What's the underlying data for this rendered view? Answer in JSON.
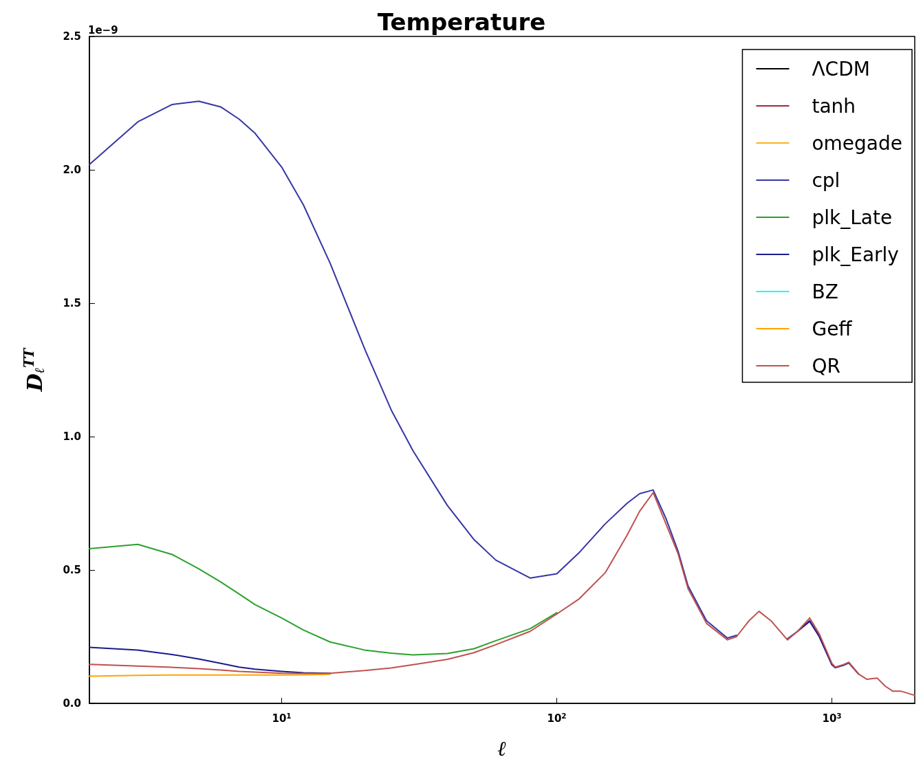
{
  "chart_data": {
    "type": "line",
    "title": "Temperature",
    "xlabel": "ℓ",
    "ylabel": "D$_{ℓ}$$^{TT}$",
    "annotations": [
      "1e−9"
    ],
    "log": "x",
    "grid": false,
    "legend": "top right",
    "xlim": [
      2,
      2000
    ],
    "xticks": [
      {
        "value": 10,
        "label": "10$^{1}$"
      },
      {
        "value": 100,
        "label": "10$^{2}$"
      },
      {
        "value": 1000,
        "label": "10$^{3}$"
      }
    ],
    "ylim": [
      0,
      2.5
    ],
    "yticks": [
      {
        "value": 0,
        "label": "0.0"
      },
      0.5,
      {
        "value": 1,
        "label": "1.0"
      },
      1.5,
      {
        "value": 2,
        "label": "2.0"
      },
      2.5
    ],
    "x": [
      2,
      3,
      4,
      5,
      6,
      7,
      8,
      10,
      12,
      15,
      20,
      25,
      30,
      40,
      50,
      60,
      80,
      100,
      120,
      150,
      180,
      200,
      224,
      250,
      276,
      300,
      350,
      417,
      450,
      500,
      543,
      600,
      689,
      750,
      830,
      900,
      1000,
      1028,
      1100,
      1152,
      1250,
      1342,
      1460,
      1560,
      1662,
      1780,
      2000
    ],
    "series": [
      {
        "name": "ΛCDM",
        "color": "#000000",
        "values": [
          null,
          null,
          null,
          null,
          null,
          null,
          null,
          null,
          null,
          null,
          null,
          null,
          null,
          null,
          null,
          null,
          null,
          null,
          null,
          null,
          null,
          null,
          null,
          null,
          null,
          null,
          null,
          null,
          null,
          null,
          null,
          null,
          null,
          null,
          null,
          null,
          null,
          null,
          null,
          null,
          null,
          null,
          null,
          null,
          null,
          null,
          null
        ]
      },
      {
        "name": "tanh",
        "color": "#a0283c",
        "values": [
          null,
          null,
          null,
          null,
          null,
          null,
          null,
          null,
          null,
          null,
          null,
          null,
          null,
          null,
          null,
          null,
          null,
          null,
          null,
          null,
          null,
          null,
          null,
          null,
          null,
          null,
          null,
          null,
          null,
          null,
          null,
          null,
          null,
          null,
          null,
          null,
          null,
          null,
          null,
          null,
          null,
          null,
          null,
          null,
          null,
          null,
          null
        ]
      },
      {
        "name": "omegade",
        "color": "#ffb31a",
        "values": [
          null,
          null,
          null,
          null,
          null,
          null,
          null,
          null,
          null,
          null,
          null,
          null,
          null,
          null,
          null,
          null,
          null,
          null,
          null,
          null,
          null,
          null,
          null,
          null,
          null,
          null,
          null,
          null,
          null,
          null,
          null,
          null,
          null,
          null,
          null,
          null,
          null,
          null,
          null,
          null,
          null,
          null,
          null,
          null,
          null,
          null,
          null
        ]
      },
      {
        "name": "cpl",
        "color": "#3535a5",
        "values": [
          2.02,
          2.18,
          2.245,
          2.257,
          2.236,
          2.19,
          2.137,
          2.01,
          1.868,
          1.65,
          1.33,
          1.1,
          0.947,
          0.742,
          0.614,
          0.537,
          0.47,
          0.486,
          0.563,
          0.673,
          0.75,
          0.786,
          0.8,
          0.69,
          0.57,
          0.44,
          0.31,
          0.245,
          0.255,
          null,
          null,
          null,
          0.242,
          0.27,
          0.307,
          0.25,
          0.145,
          0.134,
          0.143,
          0.152,
          0.11,
          null,
          null,
          null,
          null,
          null,
          null
        ]
      },
      {
        "name": "plk_Late",
        "color": "#2ca02c",
        "values": [
          0.58,
          0.596,
          0.558,
          0.504,
          0.455,
          0.41,
          0.37,
          0.32,
          0.275,
          0.23,
          0.2,
          0.188,
          0.182,
          0.187,
          0.205,
          0.235,
          0.28,
          0.34,
          null,
          null,
          null,
          null,
          null,
          null,
          null,
          null,
          null,
          null,
          null,
          null,
          null,
          null,
          null,
          null,
          null,
          null,
          null,
          null,
          null,
          null,
          null,
          null,
          null,
          null,
          null,
          null,
          null
        ]
      },
      {
        "name": "plk_Early",
        "color": "#1a1a8c",
        "values": [
          0.21,
          0.2,
          0.183,
          0.166,
          0.15,
          0.136,
          0.128,
          0.12,
          0.115,
          0.113,
          null,
          null,
          null,
          null,
          null,
          null,
          null,
          null,
          null,
          null,
          null,
          null,
          null,
          null,
          null,
          null,
          null,
          null,
          null,
          null,
          null,
          null,
          null,
          0.27,
          0.31,
          0.25,
          0.145,
          0.134,
          0.143,
          0.152,
          0.11,
          null,
          null,
          null,
          null,
          null,
          null
        ]
      },
      {
        "name": "BZ",
        "color": "#00ffff",
        "values": [
          null,
          null,
          null,
          null,
          null,
          null,
          null,
          null,
          null,
          null,
          null,
          null,
          null,
          null,
          null,
          null,
          null,
          null,
          null,
          null,
          null,
          null,
          null,
          null,
          null,
          null,
          null,
          null,
          null,
          null,
          null,
          null,
          null,
          null,
          null,
          null,
          null,
          null,
          null,
          null,
          null,
          null,
          null,
          null,
          null,
          null,
          null
        ]
      },
      {
        "name": "Geff",
        "color": "#ffa500",
        "values": [
          0.102,
          0.105,
          0.106,
          0.106,
          0.106,
          0.106,
          0.106,
          0.106,
          0.107,
          0.109,
          null,
          null,
          null,
          null,
          null,
          null,
          null,
          null,
          null,
          null,
          null,
          null,
          null,
          null,
          null,
          null,
          null,
          null,
          null,
          null,
          null,
          null,
          null,
          null,
          null,
          null,
          null,
          null,
          null,
          null,
          null,
          null,
          null,
          null,
          null,
          null,
          null
        ]
      },
      {
        "name": "QR",
        "color": "#c0504d",
        "values": [
          0.146,
          0.14,
          0.135,
          0.13,
          0.125,
          0.12,
          0.117,
          0.113,
          0.112,
          0.113,
          0.123,
          0.133,
          0.145,
          0.165,
          0.19,
          0.22,
          0.27,
          0.335,
          0.39,
          0.49,
          0.63,
          0.72,
          0.79,
          0.67,
          0.56,
          0.43,
          0.3,
          0.238,
          0.25,
          0.31,
          0.345,
          0.31,
          0.238,
          0.27,
          0.32,
          0.26,
          0.15,
          0.136,
          0.145,
          0.154,
          0.11,
          0.09,
          0.095,
          0.065,
          0.046,
          0.046,
          0.03
        ]
      }
    ]
  }
}
